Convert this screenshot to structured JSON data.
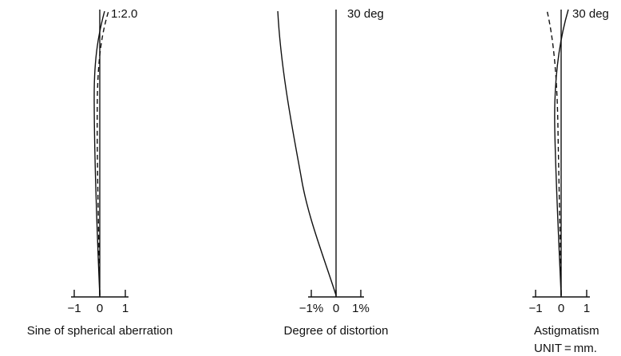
{
  "panels": [
    {
      "label": "1:2.0",
      "ticks": [
        "−1",
        "0",
        "1"
      ],
      "caption": [
        "Sine of spherical aberration"
      ]
    },
    {
      "label": "30 deg",
      "ticks": [
        "−1%",
        "0",
        "1%"
      ],
      "caption": [
        "Degree of distortion"
      ]
    },
    {
      "label": "30 deg",
      "ticks": [
        "−1",
        "0",
        "1"
      ],
      "caption": [
        "Astigmatism",
        "UNIT = mm."
      ]
    }
  ]
}
